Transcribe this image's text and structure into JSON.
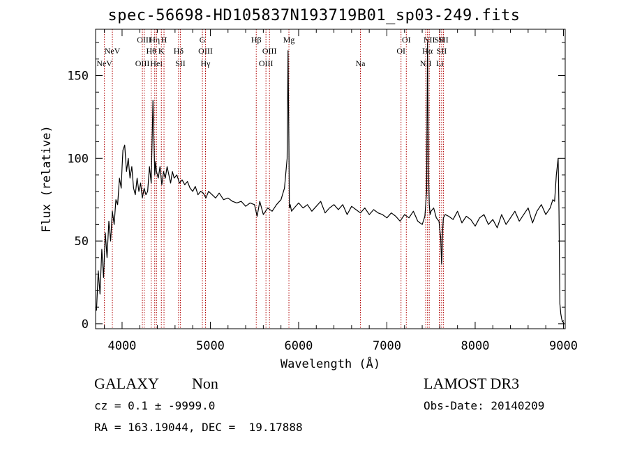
{
  "title": "spec-56698-HD105837N193719B01_sp03-249.fits",
  "info": {
    "object_class": "GALAXY",
    "subclass": "Non",
    "survey": "LAMOST DR3",
    "cz": "cz = 0.1 ± -9999.0",
    "obs_date": "Obs-Date: 20140209",
    "coords": "RA = 163.19044, DEC =  19.17888"
  },
  "colors": {
    "spectrum": "#000000",
    "lines": "#b00000",
    "frame": "#000000"
  },
  "chart_data": {
    "type": "line",
    "title": "spec-56698-HD105837N193719B01_sp03-249.fits",
    "xlabel": "Wavelength (Å)",
    "ylabel": "Flux (relative)",
    "xlim": [
      3700,
      9020
    ],
    "ylim": [
      -3,
      178
    ],
    "x_ticks": [
      4000,
      5000,
      6000,
      7000,
      8000,
      9000
    ],
    "y_ticks": [
      0,
      50,
      100,
      150
    ],
    "grid": false,
    "series": [
      {
        "x": [
          3710,
          3730,
          3750,
          3770,
          3790,
          3810,
          3830,
          3850,
          3870,
          3890,
          3910,
          3930,
          3950,
          3970,
          3990,
          4000,
          4010,
          4030,
          4050,
          4070,
          4090,
          4110,
          4130,
          4150,
          4170,
          4190,
          4210,
          4230,
          4250,
          4270,
          4290,
          4310,
          4330,
          4350,
          4370,
          4380,
          4390,
          4410,
          4430,
          4450,
          4470,
          4490,
          4510,
          4530,
          4550,
          4570,
          4590,
          4620,
          4650,
          4680,
          4710,
          4740,
          4770,
          4800,
          4830,
          4860,
          4890,
          4920,
          4950,
          4980,
          5020,
          5060,
          5100,
          5150,
          5200,
          5250,
          5300,
          5350,
          5400,
          5450,
          5500,
          5530,
          5560,
          5600,
          5650,
          5700,
          5750,
          5800,
          5840,
          5870,
          5880,
          5890,
          5895,
          5905,
          5920,
          5950,
          6000,
          6050,
          6100,
          6150,
          6200,
          6250,
          6300,
          6350,
          6400,
          6450,
          6500,
          6550,
          6600,
          6650,
          6700,
          6750,
          6800,
          6850,
          6900,
          6950,
          7000,
          7050,
          7100,
          7150,
          7200,
          7250,
          7300,
          7350,
          7400,
          7430,
          7450,
          7460,
          7470,
          7480,
          7490,
          7500,
          7530,
          7560,
          7590,
          7610,
          7620,
          7625,
          7630,
          7640,
          7660,
          7700,
          7750,
          7800,
          7850,
          7900,
          7950,
          8000,
          8050,
          8100,
          8150,
          8200,
          8250,
          8300,
          8350,
          8400,
          8450,
          8500,
          8550,
          8600,
          8650,
          8700,
          8750,
          8800,
          8850,
          8880,
          8900,
          8920,
          8940,
          8950,
          8955,
          8960,
          8970,
          8980,
          8990,
          9000
        ],
        "y": [
          8,
          32,
          18,
          45,
          28,
          55,
          40,
          62,
          50,
          68,
          60,
          75,
          72,
          88,
          82,
          95,
          105,
          108,
          92,
          100,
          88,
          95,
          82,
          78,
          88,
          80,
          85,
          76,
          82,
          78,
          80,
          95,
          85,
          135,
          90,
          98,
          92,
          88,
          95,
          84,
          92,
          88,
          95,
          90,
          85,
          92,
          88,
          90,
          85,
          87,
          84,
          86,
          82,
          80,
          83,
          78,
          80,
          79,
          76,
          80,
          78,
          76,
          79,
          75,
          76,
          74,
          73,
          74,
          71,
          73,
          72,
          65,
          74,
          66,
          70,
          68,
          72,
          75,
          82,
          100,
          165,
          110,
          70,
          72,
          68,
          70,
          73,
          70,
          72,
          68,
          71,
          74,
          67,
          70,
          72,
          69,
          72,
          66,
          71,
          69,
          67,
          70,
          66,
          69,
          67,
          66,
          64,
          67,
          65,
          62,
          66,
          64,
          68,
          62,
          60,
          65,
          80,
          170,
          95,
          72,
          66,
          68,
          70,
          64,
          62,
          52,
          36,
          42,
          55,
          64,
          66,
          65,
          63,
          68,
          61,
          65,
          63,
          59,
          64,
          66,
          60,
          63,
          58,
          66,
          60,
          64,
          68,
          62,
          66,
          70,
          61,
          68,
          72,
          66,
          70,
          75,
          74,
          90,
          100,
          68,
          35,
          12,
          6,
          3,
          1,
          2
        ]
      }
    ],
    "line_markers": [
      {
        "label": "NeV",
        "wl": 3800,
        "row": 3
      },
      {
        "label": "NeV",
        "wl": 3890,
        "row": 2
      },
      {
        "label": "OIII",
        "wl": 4250,
        "row": 1
      },
      {
        "label": "OIII",
        "wl": 4230,
        "row": 3
      },
      {
        "label": "Hθ",
        "wl": 4330,
        "row": 2
      },
      {
        "label": "Hη",
        "wl": 4370,
        "row": 1
      },
      {
        "label": "HeI",
        "wl": 4390,
        "row": 3
      },
      {
        "label": "H",
        "wl": 4475,
        "row": 1
      },
      {
        "label": "K",
        "wl": 4445,
        "row": 2
      },
      {
        "label": "Hδ",
        "wl": 4640,
        "row": 2
      },
      {
        "label": "SII",
        "wl": 4660,
        "row": 3
      },
      {
        "label": "G",
        "wl": 4910,
        "row": 1
      },
      {
        "label": "OIII",
        "wl": 4945,
        "row": 2
      },
      {
        "label": "Hγ",
        "wl": 4945,
        "row": 3
      },
      {
        "label": "Hβ",
        "wl": 5520,
        "row": 1
      },
      {
        "label": "OIII",
        "wl": 5670,
        "row": 2
      },
      {
        "label": "OIII",
        "wl": 5630,
        "row": 3
      },
      {
        "label": "Mg",
        "wl": 5890,
        "row": 1
      },
      {
        "label": "Na",
        "wl": 6700,
        "row": 3
      },
      {
        "label": "OI",
        "wl": 7220,
        "row": 1
      },
      {
        "label": "OI",
        "wl": 7160,
        "row": 2
      },
      {
        "label": "NII",
        "wl": 7480,
        "row": 1
      },
      {
        "label": "Hα",
        "wl": 7460,
        "row": 2
      },
      {
        "label": "NII",
        "wl": 7440,
        "row": 3
      },
      {
        "label": "SII",
        "wl": 7595,
        "row": 1
      },
      {
        "label": "SII",
        "wl": 7640,
        "row": 1
      },
      {
        "label": "SII",
        "wl": 7620,
        "row": 2
      },
      {
        "label": "Li",
        "wl": 7600,
        "row": 3
      }
    ]
  }
}
